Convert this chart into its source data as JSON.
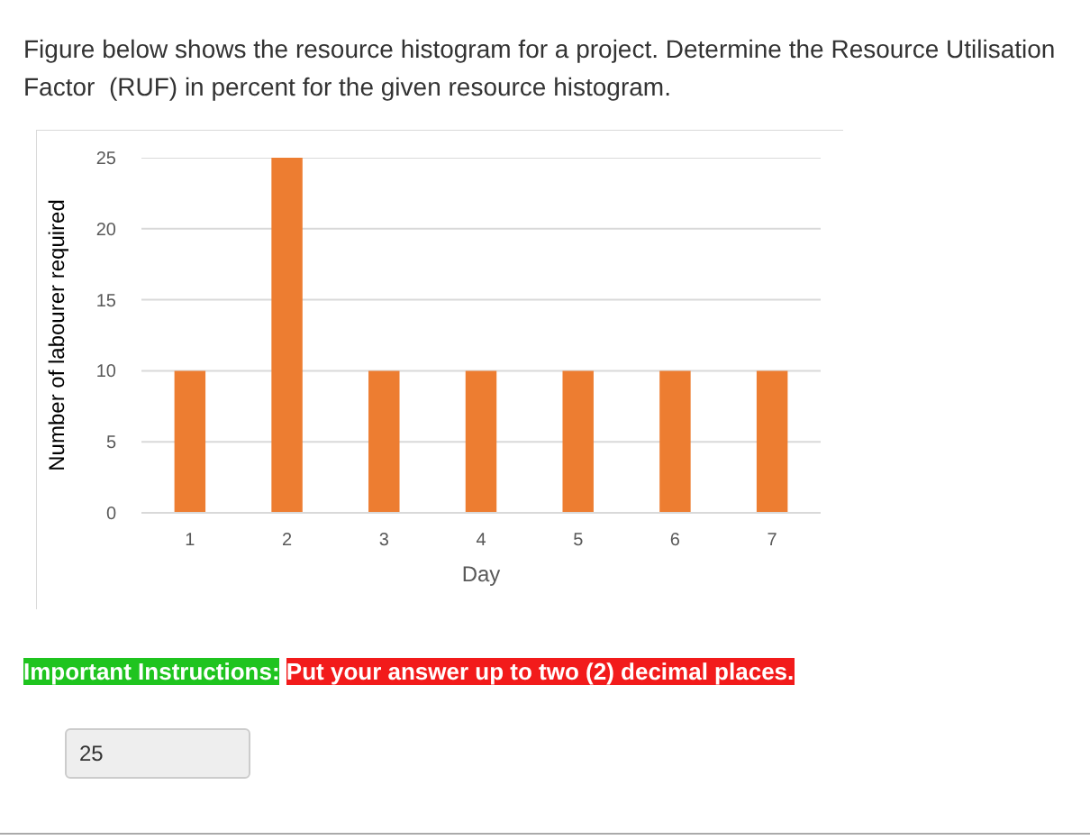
{
  "chart_data": {
    "type": "bar",
    "title": "Figure below shows the resource histogram for a project. Determine the Resource Utilisation Factor  (RUF) in percent for the given resource histogram.",
    "xlabel": "Day",
    "ylabel": "Number of labourer required",
    "categories": [
      "1",
      "2",
      "3",
      "4",
      "5",
      "6",
      "7"
    ],
    "values": [
      10,
      25,
      10,
      10,
      10,
      10,
      10
    ],
    "color": "#ed7d31",
    "ylim": [
      0,
      25
    ],
    "yticks": [
      0,
      5,
      10,
      15,
      20,
      25
    ],
    "grid": "y",
    "annotations": [
      "Important Instructions:",
      "Put your answer up to two (2) decimal places.",
      "25"
    ]
  }
}
